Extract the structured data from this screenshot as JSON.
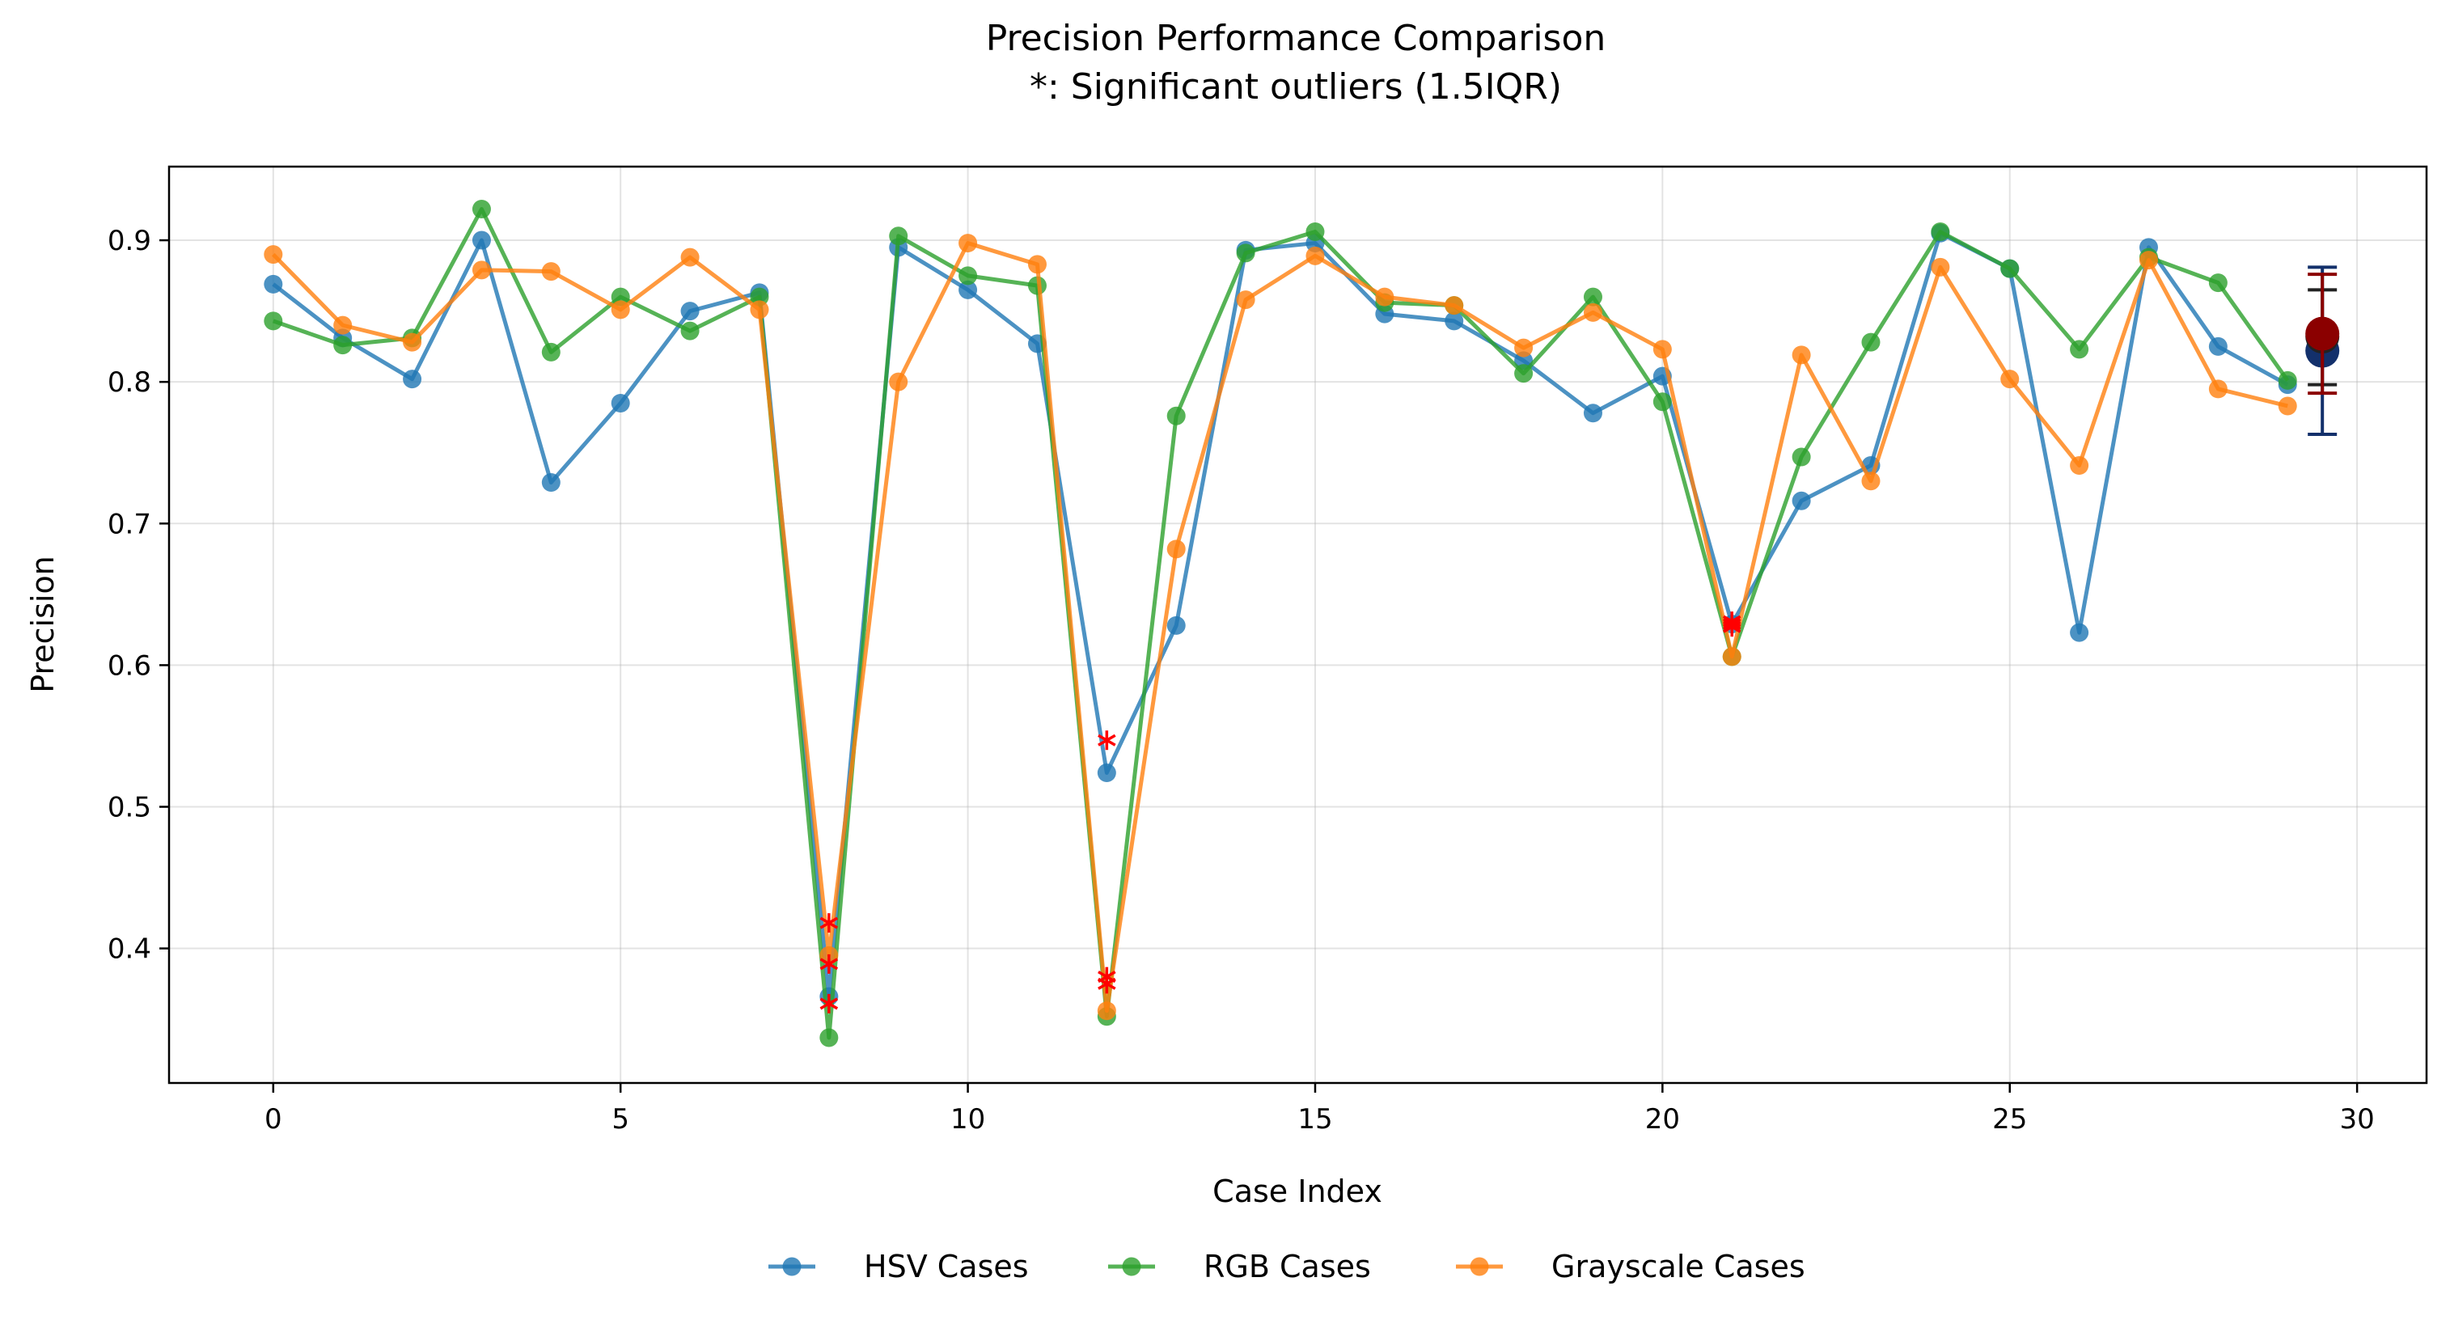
{
  "chart_data": {
    "type": "line",
    "title": "Precision Performance Comparison",
    "subtitle": "*: Significant outliers (1.5IQR)",
    "xlabel": "Case Index",
    "ylabel": "Precision",
    "xlim": [
      -1.5,
      31
    ],
    "ylim": [
      0.305,
      0.952
    ],
    "xticks": [
      0,
      5,
      10,
      15,
      20,
      25,
      30
    ],
    "yticks": [
      0.4,
      0.5,
      0.6,
      0.7,
      0.8,
      0.9
    ],
    "ytick_labels": [
      "0.4",
      "0.5",
      "0.6",
      "0.7",
      "0.8",
      "0.9"
    ],
    "grid": true,
    "legend_position": "bottom-center",
    "outlier_marker": "*",
    "outlier_color": "#ff0000",
    "x": [
      0,
      1,
      2,
      3,
      4,
      5,
      6,
      7,
      8,
      9,
      10,
      11,
      12,
      13,
      14,
      15,
      16,
      17,
      18,
      19,
      20,
      21,
      22,
      23,
      24,
      25,
      26,
      27,
      28,
      29
    ],
    "series": [
      {
        "name": "HSV Cases",
        "color": "#1f77b4",
        "values": [
          0.869,
          0.831,
          0.802,
          0.9,
          0.729,
          0.785,
          0.85,
          0.863,
          0.366,
          0.895,
          0.865,
          0.827,
          0.524,
          0.628,
          0.893,
          0.898,
          0.848,
          0.843,
          0.815,
          0.778,
          0.804,
          0.629,
          0.716,
          0.741,
          0.905,
          0.88,
          0.623,
          0.895,
          0.825,
          0.798
        ],
        "outliers": [
          {
            "x": 8,
            "y": 0.361
          },
          {
            "x": 12,
            "y": 0.547
          },
          {
            "x": 21,
            "y": 0.629
          }
        ],
        "summary": {
          "x": 29.5,
          "mean": 0.822,
          "lower": 0.763,
          "upper": 0.881
        }
      },
      {
        "name": "RGB Cases",
        "color": "#2ca02c",
        "values": [
          0.843,
          0.826,
          0.831,
          0.922,
          0.821,
          0.86,
          0.836,
          0.86,
          0.337,
          0.903,
          0.875,
          0.868,
          0.352,
          0.776,
          0.891,
          0.906,
          0.856,
          0.854,
          0.806,
          0.86,
          0.786,
          0.606,
          0.747,
          0.828,
          0.906,
          0.88,
          0.823,
          0.888,
          0.87,
          0.801
        ],
        "outliers": [
          {
            "x": 8,
            "y": 0.389
          },
          {
            "x": 12,
            "y": 0.375
          },
          {
            "x": 21,
            "y": 0.631
          }
        ],
        "summary": {
          "x": 29.5,
          "mean": 0.832,
          "lower": 0.798,
          "upper": 0.865
        }
      },
      {
        "name": "Grayscale Cases",
        "color": "#ff7f0e",
        "values": [
          0.89,
          0.84,
          0.828,
          0.879,
          0.878,
          0.851,
          0.888,
          0.851,
          0.395,
          0.8,
          0.898,
          0.883,
          0.356,
          0.682,
          0.858,
          0.889,
          0.86,
          0.854,
          0.824,
          0.849,
          0.823,
          0.606,
          0.819,
          0.73,
          0.881,
          0.802,
          0.741,
          0.886,
          0.795,
          0.783
        ],
        "outliers": [
          {
            "x": 8,
            "y": 0.418
          },
          {
            "x": 12,
            "y": 0.38
          },
          {
            "x": 21,
            "y": 0.627
          }
        ],
        "summary": {
          "x": 29.5,
          "mean": 0.834,
          "lower": 0.792,
          "upper": 0.876
        }
      }
    ],
    "summary_colors": {
      "HSV Cases": "#13306b",
      "RGB Cases": "#222222",
      "Grayscale Cases": "#8b0000"
    }
  }
}
